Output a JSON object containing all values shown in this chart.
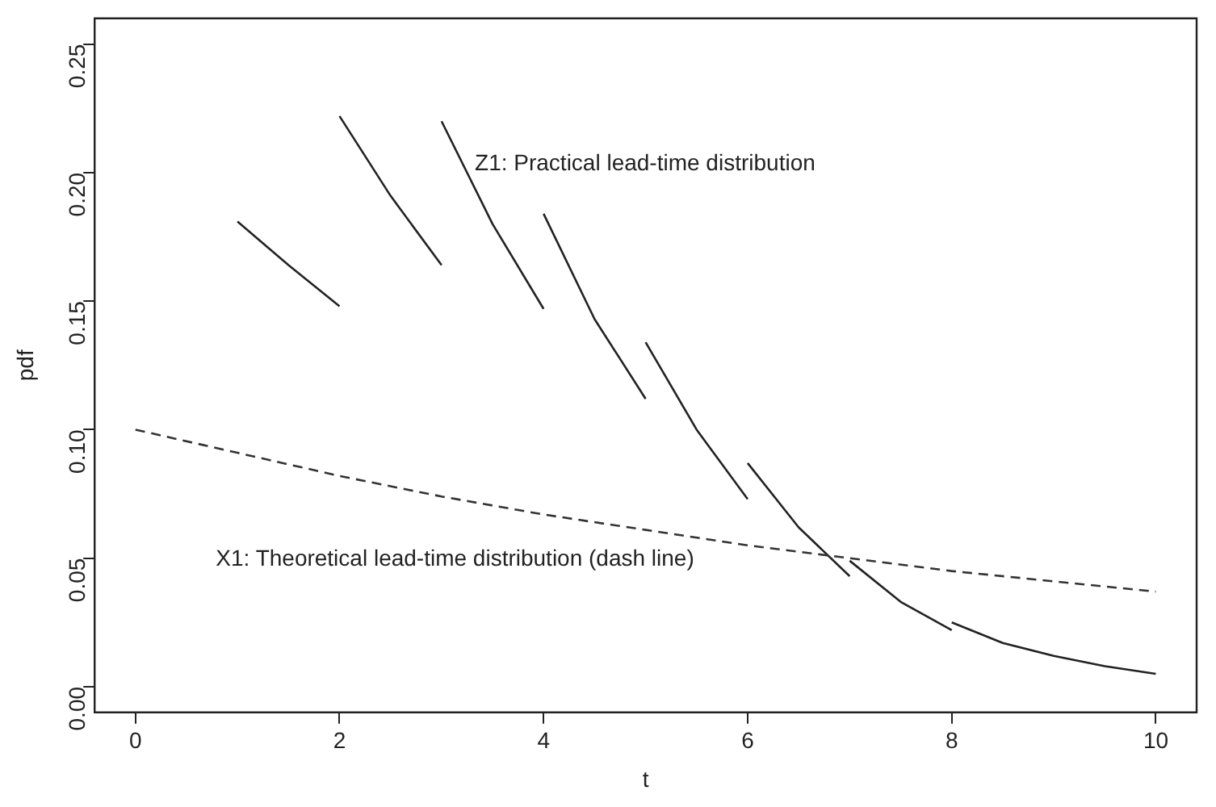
{
  "chart_data": {
    "type": "line",
    "xlabel": "t",
    "ylabel": "pdf",
    "xlim": [
      -0.4,
      10.4
    ],
    "ylim": [
      -0.01,
      0.26
    ],
    "xticks": [
      0,
      2,
      4,
      6,
      8,
      10
    ],
    "yticks": [
      {
        "value": 0,
        "label": "0.00"
      },
      {
        "value": 0.05,
        "label": "0.05"
      },
      {
        "value": 0.1,
        "label": "0.10"
      },
      {
        "value": 0.15,
        "label": "0.15"
      },
      {
        "value": 0.2,
        "label": "0.20"
      },
      {
        "value": 0.25,
        "label": "0.25"
      }
    ],
    "grid": false,
    "legend": false,
    "marker": "none",
    "series": [
      {
        "color": "#333333",
        "line_style": "dashed",
        "x": [
          0,
          1,
          2,
          3,
          4,
          5,
          6,
          7,
          8,
          9,
          10
        ],
        "values": [
          0.1,
          0.091,
          0.082,
          0.074,
          0.067,
          0.061,
          0.055,
          0.05,
          0.045,
          0.041,
          0.037
        ]
      },
      {
        "color": "#222222",
        "x": [
          1,
          1.5,
          2,
          null,
          2,
          2.5,
          3,
          null,
          3,
          3.5,
          4,
          null,
          4,
          4.5,
          5,
          null,
          5,
          5.5,
          6,
          null,
          6,
          6.5,
          7,
          null,
          7,
          7.5,
          8,
          null,
          8,
          8.5,
          9,
          null,
          9,
          9.5,
          10
        ],
        "values": [
          0.181,
          0.164,
          0.148,
          null,
          0.222,
          0.191,
          0.164,
          null,
          0.22,
          0.18,
          0.147,
          null,
          0.184,
          0.143,
          0.112,
          null,
          0.134,
          0.1,
          0.073,
          null,
          0.087,
          0.062,
          0.043,
          null,
          0.049,
          0.033,
          0.022,
          null,
          0.025,
          0.017,
          0.012,
          null,
          0.012,
          0.008,
          0.005
        ]
      }
    ],
    "annotations": [
      "Z1: Practical lead-time distribution",
      "X1: Theoretical lead-time distribution (dash line)"
    ]
  }
}
